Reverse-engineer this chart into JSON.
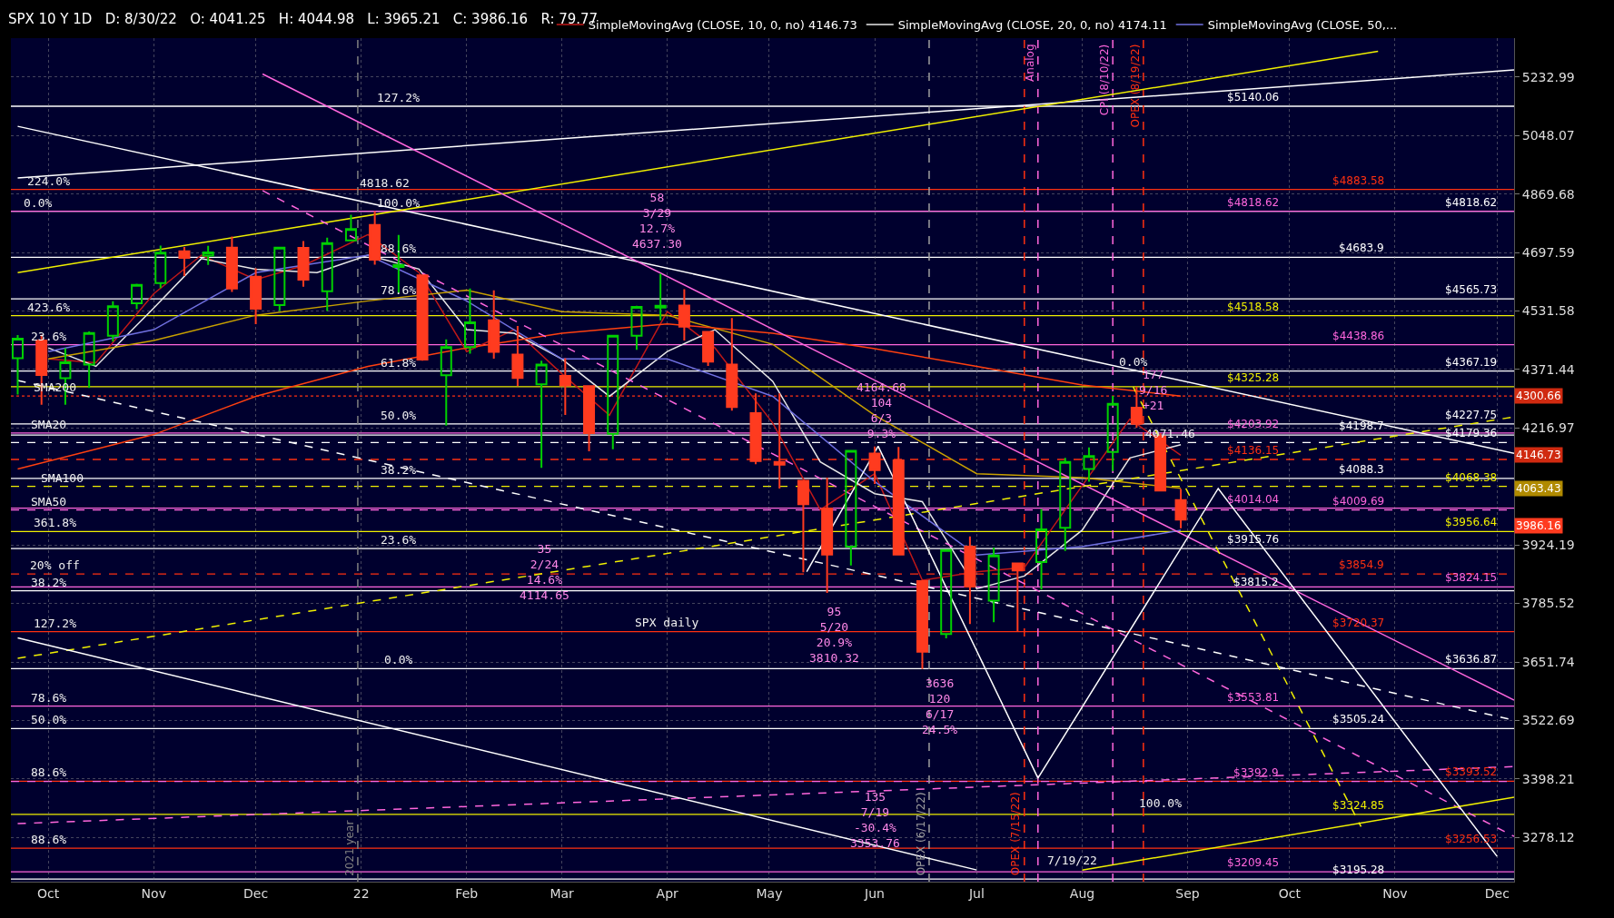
{
  "chart_data": {
    "type": "candlestick",
    "title": "SPX 10 Y 1D   D: 8/30/22   O: 4041.25   H: 4044.98   L: 3965.21   C: 3986.16   R: 79.77",
    "x": [
      "2021-09-22",
      "2021-09-29",
      "2021-10-06",
      "2021-10-13",
      "2021-10-20",
      "2021-10-27",
      "2021-11-03",
      "2021-11-10",
      "2021-11-17",
      "2021-11-24",
      "2021-12-01",
      "2021-12-08",
      "2021-12-15",
      "2021-12-22",
      "2021-12-29",
      "2022-01-05",
      "2022-01-12",
      "2022-01-19",
      "2022-01-26",
      "2022-02-02",
      "2022-02-09",
      "2022-02-16",
      "2022-02-23",
      "2022-03-02",
      "2022-03-09",
      "2022-03-16",
      "2022-03-23",
      "2022-03-30",
      "2022-04-06",
      "2022-04-13",
      "2022-04-20",
      "2022-04-27",
      "2022-05-04",
      "2022-05-11",
      "2022-05-18",
      "2022-05-25",
      "2022-06-01",
      "2022-06-08",
      "2022-06-15",
      "2022-06-22",
      "2022-06-29",
      "2022-07-06",
      "2022-07-13",
      "2022-07-20",
      "2022-07-27",
      "2022-08-03",
      "2022-08-10",
      "2022-08-17",
      "2022-08-24",
      "2022-08-30"
    ],
    "ohlc": [
      [
        4402,
        4465,
        4305,
        4455
      ],
      [
        4450,
        4466,
        4278,
        4357
      ],
      [
        4348,
        4429,
        4278,
        4391
      ],
      [
        4385,
        4475,
        4322,
        4471
      ],
      [
        4463,
        4559,
        4447,
        4545
      ],
      [
        4553,
        4608,
        4537,
        4605
      ],
      [
        4610,
        4718,
        4596,
        4697
      ],
      [
        4701,
        4714,
        4630,
        4682
      ],
      [
        4689,
        4717,
        4662,
        4698
      ],
      [
        4712,
        4744,
        4585,
        4595
      ],
      [
        4628,
        4652,
        4495,
        4538
      ],
      [
        4548,
        4713,
        4532,
        4712
      ],
      [
        4711,
        4731,
        4600,
        4620
      ],
      [
        4587,
        4741,
        4532,
        4725
      ],
      [
        4733,
        4808,
        4733,
        4766
      ],
      [
        4778,
        4819,
        4663,
        4677
      ],
      [
        4656,
        4749,
        4582,
        4662
      ],
      [
        4632,
        4632,
        4395,
        4398
      ],
      [
        4356,
        4453,
        4223,
        4432
      ],
      [
        4432,
        4595,
        4414,
        4500
      ],
      [
        4506,
        4590,
        4401,
        4419
      ],
      [
        4412,
        4490,
        4327,
        4349
      ],
      [
        4332,
        4395,
        4115,
        4385
      ],
      [
        4354,
        4402,
        4251,
        4329
      ],
      [
        4327,
        4327,
        4157,
        4204
      ],
      [
        4202,
        4466,
        4162,
        4463
      ],
      [
        4463,
        4546,
        4425,
        4543
      ],
      [
        4541,
        4637,
        4506,
        4546
      ],
      [
        4547,
        4593,
        4450,
        4488
      ],
      [
        4474,
        4474,
        4381,
        4393
      ],
      [
        4385,
        4512,
        4262,
        4272
      ],
      [
        4256,
        4308,
        4124,
        4132
      ],
      [
        4130,
        4308,
        4063,
        4123
      ],
      [
        4082,
        4082,
        3859,
        4024
      ],
      [
        4013,
        4090,
        3810,
        3901
      ],
      [
        3920,
        4158,
        3875,
        4158
      ],
      [
        4151,
        4169,
        4074,
        4109
      ],
      [
        4134,
        4168,
        3900,
        3901
      ],
      [
        3838,
        3838,
        3636,
        3675
      ],
      [
        3715,
        3913,
        3705,
        3912
      ],
      [
        3920,
        3945,
        3738,
        3825
      ],
      [
        3792,
        3918,
        3742,
        3899
      ],
      [
        3880,
        3880,
        3721,
        3863
      ],
      [
        3883,
        4012,
        3818,
        3962
      ],
      [
        3966,
        4140,
        3910,
        4130
      ],
      [
        4112,
        4167,
        4080,
        4145
      ],
      [
        4155,
        4301,
        4107,
        4280
      ],
      [
        4270,
        4325,
        4218,
        4228
      ],
      [
        4195,
        4203,
        4057,
        4058
      ],
      [
        4034,
        4062,
        3965,
        3986
      ]
    ],
    "series": [
      {
        "type": "line",
        "name": "SimpleMovingAvg (CLOSE, 10, 0, no) 4146.73",
        "color": "#c01818",
        "x": [
          "2021-10-01",
          "2021-10-15",
          "2021-11-01",
          "2021-11-15",
          "2021-12-01",
          "2021-12-15",
          "2022-01-03",
          "2022-01-18",
          "2022-02-01",
          "2022-02-15",
          "2022-03-01",
          "2022-03-15",
          "2022-04-01",
          "2022-04-15",
          "2022-05-02",
          "2022-05-16",
          "2022-06-01",
          "2022-06-15",
          "2022-07-01",
          "2022-07-15",
          "2022-08-01",
          "2022-08-15",
          "2022-08-30"
        ],
        "values": [
          4400,
          4390,
          4580,
          4690,
          4620,
          4660,
          4750,
          4640,
          4420,
          4480,
          4360,
          4250,
          4530,
          4430,
          4230,
          4010,
          4100,
          3840,
          3860,
          3870,
          4070,
          4240,
          4146.73
        ]
      },
      {
        "type": "line",
        "name": "SimpleMovingAvg (CLOSE, 20, 0, no) 4174.11",
        "color": "#e8e8e8",
        "x": [
          "2021-10-01",
          "2021-10-15",
          "2021-11-01",
          "2021-11-15",
          "2021-12-01",
          "2021-12-19",
          "2022-01-03",
          "2022-01-18",
          "2022-02-01",
          "2022-02-15",
          "2022-03-01",
          "2022-03-15",
          "2022-04-01",
          "2022-04-15",
          "2022-05-02",
          "2022-05-16",
          "2022-06-01",
          "2022-06-15",
          "2022-07-01",
          "2022-07-15",
          "2022-08-01",
          "2022-08-15",
          "2022-08-30"
        ],
        "values": [
          4430,
          4380,
          4540,
          4680,
          4650,
          4640,
          4690,
          4650,
          4480,
          4470,
          4400,
          4300,
          4420,
          4480,
          4340,
          4130,
          4050,
          4030,
          3820,
          3850,
          3960,
          4140,
          4174.11
        ]
      },
      {
        "type": "line",
        "name": "SimpleMovingAvg (CLOSE, 50,...",
        "color": "#7070e0",
        "x": [
          "2021-10-01",
          "2021-11-01",
          "2021-12-01",
          "2022-01-03",
          "2022-02-01",
          "2022-03-01",
          "2022-04-01",
          "2022-05-02",
          "2022-06-01",
          "2022-07-01",
          "2022-08-01",
          "2022-08-30"
        ],
        "values": [
          4420,
          4480,
          4640,
          4690,
          4560,
          4400,
          4400,
          4300,
          4080,
          3900,
          3920,
          3960
        ]
      },
      {
        "type": "line",
        "color": "#c8a000",
        "x": [
          "2021-10-01",
          "2021-11-01",
          "2021-12-01",
          "2022-01-03",
          "2022-02-01",
          "2022-03-01",
          "2022-04-01",
          "2022-05-02",
          "2022-06-01",
          "2022-07-01",
          "2022-08-01",
          "2022-08-30"
        ],
        "values": [
          4400,
          4450,
          4520,
          4560,
          4590,
          4530,
          4520,
          4440,
          4250,
          4100,
          4090,
          4063.43
        ]
      },
      {
        "type": "line",
        "color": "#ff4010",
        "x": [
          "2021-09-22",
          "2021-11-01",
          "2021-12-01",
          "2022-01-03",
          "2022-02-01",
          "2022-03-01",
          "2022-04-01",
          "2022-05-02",
          "2022-06-01",
          "2022-07-01",
          "2022-08-01",
          "2022-08-30"
        ],
        "values": [
          4112,
          4200,
          4300,
          4380,
          4430,
          4470,
          4496,
          4470,
          4428,
          4380,
          4330,
          4300.66
        ]
      },
      {
        "type": "line",
        "color": "#ffffff",
        "x": [
          "2021-09-22",
          "2022-12-06"
        ],
        "values": [
          5077,
          4152
        ]
      },
      {
        "type": "line",
        "color": "#ffffff",
        "x": [
          "2021-09-22",
          "2022-12-06"
        ],
        "values": [
          4918,
          5256
        ]
      },
      {
        "type": "line",
        "color": "#f0f000",
        "x": [
          "2021-09-22",
          "2022-10-27"
        ],
        "values": [
          4640,
          5317
        ]
      },
      {
        "type": "line",
        "color": "#ff66dd",
        "x": [
          "2021-12-03",
          "2022-12-06"
        ],
        "values": [
          5243,
          3567
        ]
      },
      {
        "type": "line",
        "color": "#ffffff",
        "line_style": "dashed",
        "x": [
          "2021-09-22",
          "2022-12-06"
        ],
        "values": [
          4342,
          3523
        ]
      },
      {
        "type": "line",
        "color": "#f0f000",
        "line_style": "dashed",
        "x": [
          "2021-09-22",
          "2022-12-06"
        ],
        "values": [
          3660,
          4246
        ]
      },
      {
        "type": "line",
        "color": "#ff66dd",
        "line_style": "dashed",
        "x": [
          "2021-12-03",
          "2022-12-06"
        ],
        "values": [
          4880,
          3280
        ]
      },
      {
        "type": "line",
        "color": "#ff66dd",
        "line_style": "dashed",
        "x": [
          "2021-09-22",
          "2022-12-06"
        ],
        "values": [
          3306,
          3424
        ]
      },
      {
        "type": "line",
        "color": "#ffffff",
        "x": [
          "2021-09-22",
          "2022-07-01"
        ],
        "values": [
          3706,
          3213
        ]
      },
      {
        "type": "line",
        "color": "#f0f000",
        "x": [
          "2022-08-01",
          "2022-12-06"
        ],
        "values": [
          3213,
          3360
        ]
      },
      {
        "type": "line",
        "color": "#ffffff",
        "x": [
          "2022-05-12",
          "2022-06-02",
          "2022-07-19",
          "2022-09-10",
          "2022-12-01"
        ],
        "values": [
          3860,
          4170,
          3400,
          4063,
          3240
        ]
      },
      {
        "type": "line",
        "color": "#f0f000",
        "line_style": "dashed",
        "x": [
          "2022-08-16",
          "2022-10-22"
        ],
        "values": [
          4325,
          3300
        ]
      }
    ],
    "xlim": [
      "2021-09-20",
      "2022-12-06"
    ],
    "xticks": [
      {
        "value": "2021-10-01",
        "label": "Oct"
      },
      {
        "value": "2021-11-01",
        "label": "Nov"
      },
      {
        "value": "2021-12-01",
        "label": "Dec"
      },
      {
        "value": "2022-01-01",
        "label": "22"
      },
      {
        "value": "2022-02-01",
        "label": "Feb"
      },
      {
        "value": "2022-03-01",
        "label": "Mar"
      },
      {
        "value": "2022-04-01",
        "label": "Apr"
      },
      {
        "value": "2022-05-01",
        "label": "May"
      },
      {
        "value": "2022-06-01",
        "label": "Jun"
      },
      {
        "value": "2022-07-01",
        "label": "Jul"
      },
      {
        "value": "2022-08-01",
        "label": "Aug"
      },
      {
        "value": "2022-09-01",
        "label": "Sep"
      },
      {
        "value": "2022-10-01",
        "label": "Oct"
      },
      {
        "value": "2022-11-01",
        "label": "Nov"
      },
      {
        "value": "2022-12-01",
        "label": "Dec"
      }
    ],
    "ylim": [
      3190,
      5360
    ],
    "log": true,
    "yticks": [
      5232.99,
      5048.07,
      4869.68,
      4697.59,
      4531.58,
      4371.44,
      4216.97,
      3924.19,
      3785.52,
      3651.74,
      3522.69,
      3398.21,
      3278.12
    ],
    "grid": true,
    "legend": "top",
    "ref_lines": [
      {
        "axis": "y",
        "value": 5140.06,
        "label": "$5140.06",
        "color": "#ffffff"
      },
      {
        "axis": "y",
        "value": 4883.58,
        "label": "$4883.58",
        "color": "#ff3010"
      },
      {
        "axis": "y",
        "value": 4818.62,
        "label": "$4818.62",
        "color": "#ffffff"
      },
      {
        "axis": "y",
        "value": 4818.62,
        "label": "$4818.62",
        "color": "#ff66dd"
      },
      {
        "axis": "y",
        "value": 4683.9,
        "label": "$4683.9",
        "color": "#ffffff"
      },
      {
        "axis": "y",
        "value": 4565.73,
        "label": "$4565.73",
        "color": "#ffffff"
      },
      {
        "axis": "y",
        "value": 4518.58,
        "label": "$4518.58",
        "color": "#f0f000"
      },
      {
        "axis": "y",
        "value": 4438.86,
        "label": "$4438.86",
        "color": "#ff66dd"
      },
      {
        "axis": "y",
        "value": 4367.19,
        "label": "$4367.19",
        "color": "#ffffff"
      },
      {
        "axis": "y",
        "value": 4325.28,
        "label": "$4325.28",
        "color": "#f0f000"
      },
      {
        "axis": "y",
        "value": 4300.66,
        "color": "#ff3010",
        "line_style": "dotted"
      },
      {
        "axis": "y",
        "value": 4227.75,
        "label": "$4227.75",
        "color": "#ffffff"
      },
      {
        "axis": "y",
        "value": 4203.92,
        "label": "$4203.92",
        "color": "#ff66dd"
      },
      {
        "axis": "y",
        "value": 4198.7,
        "label": "$4198.7",
        "color": "#ffffff"
      },
      {
        "axis": "y",
        "value": 4179.36,
        "label": "$4179.36",
        "color": "#ffffff",
        "line_style": "dashed"
      },
      {
        "axis": "y",
        "value": 4136.15,
        "label": "$4136.15",
        "color": "#ff3010",
        "line_style": "dashed"
      },
      {
        "axis": "y",
        "value": 4088.3,
        "label": "$4088.3",
        "color": "#ffffff"
      },
      {
        "axis": "y",
        "value": 4068.38,
        "label": "$4068.38",
        "color": "#f0f000",
        "line_style": "dashed"
      },
      {
        "axis": "y",
        "value": 4014.04,
        "label": "$4014.04",
        "color": "#ff66dd"
      },
      {
        "axis": "y",
        "value": 4009.69,
        "label": "$4009.69",
        "color": "#ff66dd",
        "line_style": "dashed"
      },
      {
        "axis": "y",
        "value": 3956.64,
        "label": "$3956.64",
        "color": "#f0f000"
      },
      {
        "axis": "y",
        "value": 3915.76,
        "label": "$3915.76",
        "color": "#ffffff"
      },
      {
        "axis": "y",
        "value": 3854.9,
        "label": "$3854.9",
        "color": "#ff3010",
        "line_style": "dashed"
      },
      {
        "axis": "y",
        "value": 3824.15,
        "label": "$3824.15",
        "color": "#ff66dd"
      },
      {
        "axis": "y",
        "value": 3815.2,
        "label": "$3815.2",
        "color": "#ffffff"
      },
      {
        "axis": "y",
        "value": 3720.37,
        "label": "$3720.37",
        "color": "#ff3010"
      },
      {
        "axis": "y",
        "value": 3636.87,
        "label": "$3636.87",
        "color": "#ffffff"
      },
      {
        "axis": "y",
        "value": 3553.81,
        "label": "$3553.81",
        "color": "#ff66dd"
      },
      {
        "axis": "y",
        "value": 3505.24,
        "label": "$3505.24",
        "color": "#ffffff"
      },
      {
        "axis": "y",
        "value": 3393.52,
        "label": "$3393.52",
        "color": "#ff3010"
      },
      {
        "axis": "y",
        "value": 3392.9,
        "label": "$3392.9",
        "color": "#ff66dd",
        "line_style": "dashed"
      },
      {
        "axis": "y",
        "value": 3324.85,
        "label": "$3324.85",
        "color": "#f0f000"
      },
      {
        "axis": "y",
        "value": 3256.53,
        "label": "$3256.53",
        "color": "#ff3010"
      },
      {
        "axis": "y",
        "value": 3209.45,
        "label": "$3209.45",
        "color": "#ff66dd"
      },
      {
        "axis": "y",
        "value": 3195.28,
        "label": "$3195.28",
        "color": "#ffffff"
      },
      {
        "axis": "x",
        "value": "2022-07-19",
        "label": "Analog",
        "color": "#ff66dd",
        "line_style": "dashed"
      },
      {
        "axis": "x",
        "value": "2021-12-31",
        "label": "2021 year",
        "color": "#808080",
        "line_style": "dashed"
      },
      {
        "axis": "x",
        "value": "2022-08-10",
        "label": "CPI (8/10/22)",
        "color": "#ff66dd",
        "line_style": "dashed"
      },
      {
        "axis": "x",
        "value": "2022-06-17",
        "label": "OPEX (6/17/22)",
        "color": "#a0a0a0",
        "line_style": "dashed"
      },
      {
        "axis": "x",
        "value": "2022-08-19",
        "label": "OPEX (8/19/22)",
        "color": "#ff3010",
        "line_style": "dashed"
      },
      {
        "axis": "x",
        "value": "2022-07-15",
        "label": "OPEX (7/15/22)",
        "color": "#ff3010",
        "line_style": "dashed"
      }
    ],
    "annotations": [
      {
        "text": "4818.62",
        "x": "2022-01-08",
        "y": 4878
      },
      {
        "text": "58\n3/29\n12.7%\n4637.30",
        "x": "2022-03-29",
        "y": 4697
      },
      {
        "text": "4164.68\n104\n6/3\n9.3%",
        "x": "2022-06-03",
        "y": 4180
      },
      "35\n2/24\n14.6%\n4114.65",
      {
        "text": "95\n5/20\n20.9%\n3810.32",
        "x": "2022-05-20",
        "y": 3642
      },
      "3636\n120\n6/17\n24.5%",
      {
        "text": "135\n7/19\n-30.4%\n3353.76",
        "x": "2022-06-01",
        "y": 3249
      },
      "177\n9/16\n+21",
      {
        "text": "4071.46",
        "x": "2022-08-27",
        "y": 4180
      },
      {
        "text": "0.0%",
        "x": "2022-08-16",
        "y": 4370
      },
      {
        "text": "100.0%",
        "x": "2022-08-24",
        "y": 3330
      },
      {
        "text": "SPX daily",
        "x": "2022-04-01",
        "y": 3721
      },
      {
        "text": "7/19/22",
        "x": "2022-07-29",
        "y": 3215
      },
      {
        "text": "224.0%",
        "x": "2021-10-01",
        "y": 4883.58
      },
      {
        "text": "0.0%",
        "x": "2021-09-28",
        "y": 4818.62
      },
      {
        "text": "423.6%",
        "x": "2021-10-01",
        "y": 4518.58
      },
      {
        "text": "23.6%",
        "x": "2021-10-01",
        "y": 4438.86
      },
      {
        "text": "SMA200",
        "x": "2021-10-03",
        "y": 4300.66
      },
      {
        "text": "SMA20",
        "x": "2021-10-01",
        "y": 4203.92
      },
      {
        "text": "SMA100",
        "x": "2021-10-05",
        "y": 4068.38
      },
      {
        "text": "SMA50",
        "x": "2021-10-01",
        "y": 4009.69
      },
      {
        "text": "361.8%",
        "x": "2021-10-03",
        "y": 3956.64
      },
      {
        "text": "20% off",
        "x": "2021-10-03",
        "y": 3854.9
      },
      {
        "text": "38.2%",
        "x": "2021-10-01",
        "y": 3815.2
      },
      {
        "text": "127.2%",
        "x": "2021-10-03",
        "y": 3720.37
      },
      {
        "text": "78.6%",
        "x": "2021-10-01",
        "y": 3553.81
      },
      {
        "text": "50.0%",
        "x": "2021-10-01",
        "y": 3505.24
      },
      {
        "text": "88.6%",
        "x": "2021-10-01",
        "y": 3393.52
      },
      {
        "text": "88.6%",
        "x": "2021-10-01",
        "y": 3256.53
      },
      {
        "text": "127.2%",
        "x": "2022-01-12",
        "y": 5140.06
      },
      {
        "text": "100.0%",
        "x": "2022-01-12",
        "y": 4818.62
      },
      {
        "text": "88.6%",
        "x": "2022-01-12",
        "y": 4683.9
      },
      {
        "text": "78.6%",
        "x": "2022-01-12",
        "y": 4565.73
      },
      {
        "text": "61.8%",
        "x": "2022-01-12",
        "y": 4367.19
      },
      {
        "text": "50.0%",
        "x": "2022-01-12",
        "y": 4227.75
      },
      {
        "text": "38.2%",
        "x": "2022-01-12",
        "y": 4088.3
      },
      {
        "text": "23.6%",
        "x": "2022-01-12",
        "y": 3915.76
      },
      {
        "text": "0.0%",
        "x": "2022-01-12",
        "y": 3636.87
      },
      {
        "text": "4300.66",
        "x": "2022-12-06",
        "y": 4300.66
      },
      {
        "text": "4146.73",
        "x": "2022-12-06",
        "y": 4146.73
      },
      "4063.43",
      "3986.16"
    ]
  }
}
